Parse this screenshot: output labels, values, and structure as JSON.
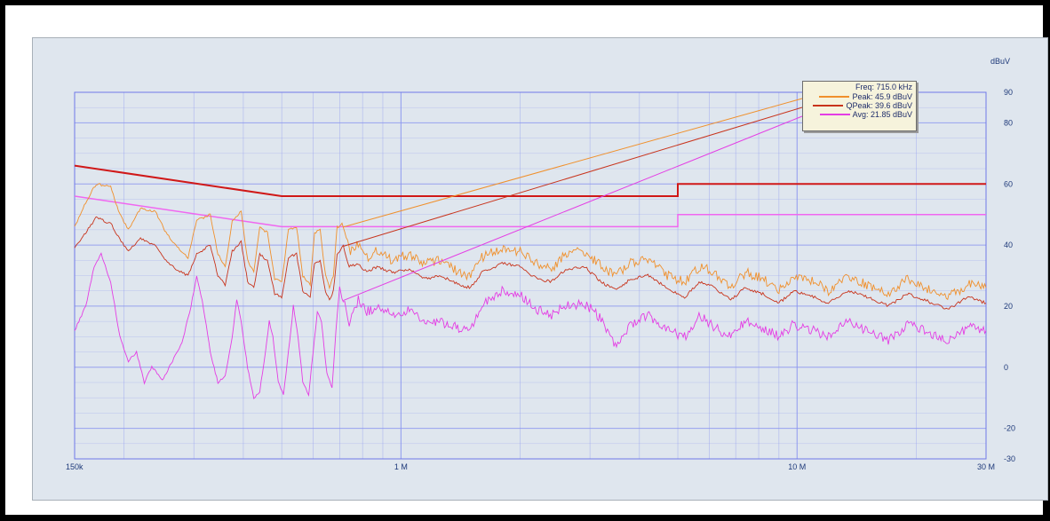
{
  "chart_data": {
    "type": "line",
    "title": "",
    "xlabel": "",
    "ylabel": "dBuV",
    "xscale": "log",
    "xlim": [
      150000,
      30000000
    ],
    "ylim": [
      -30,
      90
    ],
    "grid": true,
    "x_tick_labels": [
      {
        "x": 150000,
        "label": "150k"
      },
      {
        "x": 1000000,
        "label": "1 M"
      },
      {
        "x": 10000000,
        "label": "10 M"
      },
      {
        "x": 30000000,
        "label": "30 M"
      }
    ],
    "y_ticks": [
      -30,
      -20,
      0,
      20,
      40,
      60,
      80,
      90
    ],
    "colors": {
      "peak": "#f0902c",
      "qpeak": "#c8341c",
      "avg": "#e43de4",
      "limit_qp": "#d01818",
      "limit_avg": "#f067f0",
      "grid": "#8b96f0",
      "axis_text": "#1f3a7a"
    },
    "limits": [
      {
        "name": "QP limit",
        "color": "#d01818",
        "points": [
          [
            150000,
            66
          ],
          [
            500000,
            56
          ],
          [
            5000000,
            56
          ],
          [
            5000000,
            60
          ],
          [
            30000000,
            60
          ]
        ]
      },
      {
        "name": "AV limit",
        "color": "#f067f0",
        "points": [
          [
            150000,
            56
          ],
          [
            500000,
            46
          ],
          [
            5000000,
            46
          ],
          [
            5000000,
            50
          ],
          [
            30000000,
            50
          ]
        ]
      }
    ],
    "series": [
      {
        "key": "peak",
        "color": "#f0902c",
        "points": [
          [
            150000,
            46
          ],
          [
            160000,
            54
          ],
          [
            170000,
            60
          ],
          [
            185000,
            59
          ],
          [
            195000,
            50
          ],
          [
            205000,
            45
          ],
          [
            220000,
            52
          ],
          [
            240000,
            51
          ],
          [
            255000,
            44
          ],
          [
            270000,
            40
          ],
          [
            290000,
            36
          ],
          [
            305000,
            48
          ],
          [
            330000,
            50
          ],
          [
            345000,
            37
          ],
          [
            360000,
            33
          ],
          [
            375000,
            48
          ],
          [
            395000,
            51
          ],
          [
            410000,
            35
          ],
          [
            425000,
            31
          ],
          [
            440000,
            46
          ],
          [
            460000,
            44
          ],
          [
            480000,
            29
          ],
          [
            500000,
            28
          ],
          [
            520000,
            45
          ],
          [
            545000,
            46
          ],
          [
            565000,
            30
          ],
          [
            590000,
            27
          ],
          [
            605000,
            44
          ],
          [
            625000,
            45
          ],
          [
            645000,
            30
          ],
          [
            660000,
            26
          ],
          [
            675000,
            30
          ],
          [
            690000,
            46
          ],
          [
            715000,
            45.9
          ],
          [
            740000,
            38
          ],
          [
            780000,
            40
          ],
          [
            820000,
            36
          ],
          [
            870000,
            38
          ],
          [
            950000,
            35
          ],
          [
            1050000,
            37
          ],
          [
            1150000,
            34
          ],
          [
            1250000,
            35
          ],
          [
            1400000,
            31
          ],
          [
            1500000,
            30
          ],
          [
            1600000,
            36
          ],
          [
            1800000,
            39
          ],
          [
            2000000,
            38
          ],
          [
            2200000,
            34
          ],
          [
            2400000,
            32
          ],
          [
            2600000,
            37
          ],
          [
            2900000,
            38
          ],
          [
            3200000,
            33
          ],
          [
            3500000,
            30
          ],
          [
            3800000,
            34
          ],
          [
            4200000,
            35
          ],
          [
            4700000,
            30
          ],
          [
            5200000,
            28
          ],
          [
            5700000,
            33
          ],
          [
            6200000,
            31
          ],
          [
            6800000,
            26
          ],
          [
            7400000,
            31
          ],
          [
            8200000,
            29
          ],
          [
            9000000,
            25
          ],
          [
            9800000,
            30
          ],
          [
            11000000,
            28
          ],
          [
            12000000,
            25
          ],
          [
            13500000,
            30
          ],
          [
            15000000,
            27
          ],
          [
            17000000,
            24
          ],
          [
            19000000,
            29
          ],
          [
            21000000,
            26
          ],
          [
            24000000,
            23
          ],
          [
            27000000,
            27
          ],
          [
            30000000,
            26
          ]
        ]
      },
      {
        "key": "qpeak",
        "color": "#c8341c",
        "points": [
          [
            150000,
            39
          ],
          [
            160000,
            44
          ],
          [
            170000,
            49
          ],
          [
            185000,
            47
          ],
          [
            195000,
            42
          ],
          [
            205000,
            38
          ],
          [
            220000,
            42
          ],
          [
            240000,
            40
          ],
          [
            255000,
            35
          ],
          [
            270000,
            32
          ],
          [
            290000,
            30
          ],
          [
            305000,
            37
          ],
          [
            330000,
            40
          ],
          [
            345000,
            30
          ],
          [
            360000,
            27
          ],
          [
            375000,
            38
          ],
          [
            395000,
            41
          ],
          [
            410000,
            28
          ],
          [
            425000,
            26
          ],
          [
            440000,
            37
          ],
          [
            460000,
            35
          ],
          [
            480000,
            24
          ],
          [
            500000,
            23
          ],
          [
            520000,
            36
          ],
          [
            545000,
            37
          ],
          [
            565000,
            25
          ],
          [
            590000,
            23
          ],
          [
            605000,
            34
          ],
          [
            625000,
            35
          ],
          [
            645000,
            25
          ],
          [
            660000,
            22
          ],
          [
            675000,
            25
          ],
          [
            690000,
            37
          ],
          [
            715000,
            39.6
          ],
          [
            740000,
            33
          ],
          [
            780000,
            34
          ],
          [
            820000,
            31
          ],
          [
            870000,
            33
          ],
          [
            950000,
            31
          ],
          [
            1050000,
            32
          ],
          [
            1150000,
            29
          ],
          [
            1250000,
            30
          ],
          [
            1400000,
            27
          ],
          [
            1500000,
            26
          ],
          [
            1600000,
            31
          ],
          [
            1800000,
            34
          ],
          [
            2000000,
            33
          ],
          [
            2200000,
            29
          ],
          [
            2400000,
            28
          ],
          [
            2600000,
            32
          ],
          [
            2900000,
            33
          ],
          [
            3200000,
            28
          ],
          [
            3500000,
            25
          ],
          [
            3800000,
            29
          ],
          [
            4200000,
            30
          ],
          [
            4700000,
            26
          ],
          [
            5200000,
            23
          ],
          [
            5700000,
            28
          ],
          [
            6200000,
            26
          ],
          [
            6800000,
            22
          ],
          [
            7400000,
            26
          ],
          [
            8200000,
            24
          ],
          [
            9000000,
            21
          ],
          [
            9800000,
            25
          ],
          [
            11000000,
            23
          ],
          [
            12000000,
            21
          ],
          [
            13500000,
            25
          ],
          [
            15000000,
            23
          ],
          [
            17000000,
            20
          ],
          [
            19000000,
            24
          ],
          [
            21000000,
            22
          ],
          [
            24000000,
            19
          ],
          [
            27000000,
            23
          ],
          [
            30000000,
            21
          ]
        ]
      },
      {
        "key": "avg",
        "color": "#e43de4",
        "points": [
          [
            150000,
            12
          ],
          [
            160000,
            20
          ],
          [
            168000,
            33
          ],
          [
            175000,
            37
          ],
          [
            185000,
            28
          ],
          [
            195000,
            10
          ],
          [
            205000,
            2
          ],
          [
            215000,
            5
          ],
          [
            225000,
            -5
          ],
          [
            235000,
            0
          ],
          [
            250000,
            -4
          ],
          [
            265000,
            2
          ],
          [
            280000,
            8
          ],
          [
            295000,
            20
          ],
          [
            305000,
            30
          ],
          [
            315000,
            22
          ],
          [
            330000,
            5
          ],
          [
            345000,
            -5
          ],
          [
            360000,
            -3
          ],
          [
            375000,
            10
          ],
          [
            385000,
            22
          ],
          [
            395000,
            15
          ],
          [
            410000,
            0
          ],
          [
            425000,
            -10
          ],
          [
            440000,
            -8
          ],
          [
            455000,
            5
          ],
          [
            465000,
            15
          ],
          [
            475000,
            10
          ],
          [
            490000,
            -5
          ],
          [
            505000,
            -9
          ],
          [
            520000,
            5
          ],
          [
            535000,
            20
          ],
          [
            550000,
            10
          ],
          [
            565000,
            -5
          ],
          [
            585000,
            -9
          ],
          [
            600000,
            5
          ],
          [
            615000,
            18
          ],
          [
            630000,
            15
          ],
          [
            650000,
            -2
          ],
          [
            670000,
            -7
          ],
          [
            685000,
            12
          ],
          [
            700000,
            26
          ],
          [
            715000,
            21.85
          ],
          [
            740000,
            15
          ],
          [
            780000,
            22
          ],
          [
            820000,
            18
          ],
          [
            870000,
            20
          ],
          [
            950000,
            17
          ],
          [
            1050000,
            19
          ],
          [
            1150000,
            14
          ],
          [
            1250000,
            15
          ],
          [
            1400000,
            13
          ],
          [
            1500000,
            12
          ],
          [
            1600000,
            20
          ],
          [
            1800000,
            25
          ],
          [
            2000000,
            24
          ],
          [
            2200000,
            19
          ],
          [
            2400000,
            17
          ],
          [
            2600000,
            20
          ],
          [
            2900000,
            21
          ],
          [
            3200000,
            16
          ],
          [
            3500000,
            6
          ],
          [
            3800000,
            14
          ],
          [
            4200000,
            17
          ],
          [
            4700000,
            12
          ],
          [
            5200000,
            10
          ],
          [
            5700000,
            17
          ],
          [
            6200000,
            13
          ],
          [
            6800000,
            10
          ],
          [
            7400000,
            15
          ],
          [
            8200000,
            13
          ],
          [
            9000000,
            10
          ],
          [
            9800000,
            14
          ],
          [
            11000000,
            12
          ],
          [
            12000000,
            10
          ],
          [
            13500000,
            15
          ],
          [
            15000000,
            12
          ],
          [
            17000000,
            9
          ],
          [
            19000000,
            14
          ],
          [
            21000000,
            12
          ],
          [
            24000000,
            8
          ],
          [
            27000000,
            13
          ],
          [
            30000000,
            12
          ]
        ]
      }
    ],
    "annotations": {
      "freq": "Freq: 715.0 kHz",
      "peak": "Peak: 45.9 dBuV",
      "qpeak": "QPeak: 39.6 dBuV",
      "avg": "Avg: 21.85 dBuV"
    },
    "marker_x": 715000,
    "legend_placement": "top-right"
  }
}
